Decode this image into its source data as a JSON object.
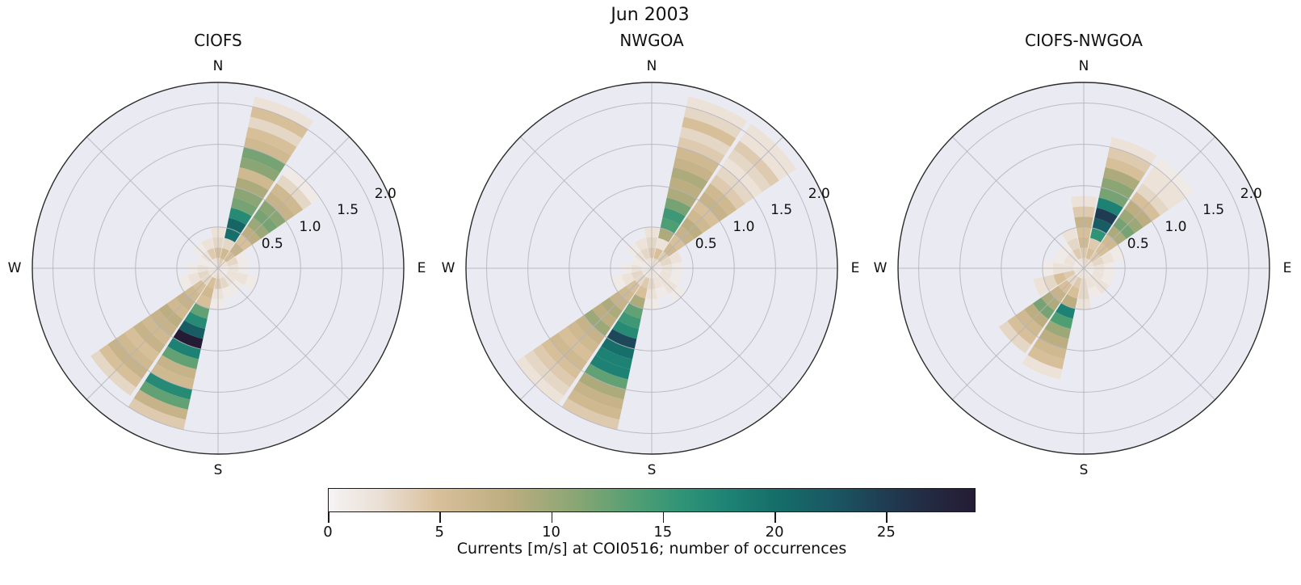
{
  "header": {
    "title": "Jun 2003"
  },
  "compass": [
    "N",
    "E",
    "S",
    "W"
  ],
  "radial_ticks": [
    "0.5",
    "1.0",
    "1.5",
    "2.0"
  ],
  "colorbar": {
    "label": "Currents [m/s] at COI0516; number of occurrences",
    "ticks": [
      0,
      5,
      10,
      15,
      20,
      25
    ],
    "vmin": 0,
    "vmax": 29,
    "colormap_stops": [
      [
        0.0,
        "#f5f3f4"
      ],
      [
        0.08,
        "#eadfd4"
      ],
      [
        0.17,
        "#d8bf9a"
      ],
      [
        0.28,
        "#bcad80"
      ],
      [
        0.38,
        "#8ba674"
      ],
      [
        0.48,
        "#4f9e74"
      ],
      [
        0.55,
        "#2f9377"
      ],
      [
        0.62,
        "#1d8274"
      ],
      [
        0.7,
        "#156c68"
      ],
      [
        0.78,
        "#1a5763"
      ],
      [
        0.86,
        "#1f3d53"
      ],
      [
        0.93,
        "#232a41"
      ],
      [
        1.0,
        "#241c35"
      ]
    ]
  },
  "style_colors": {
    "polar_background": "#eaeaf2",
    "grid": "#b3b3bd",
    "outline": "#2b2b2b"
  },
  "chart_data": [
    {
      "type": "windrose",
      "title": "CIOFS",
      "r_bin_width": 0.125,
      "r_max": 2.25,
      "r_ticks": [
        0.5,
        1.0,
        1.5,
        2.0
      ],
      "sector_width_deg": 22.5,
      "value_units": "number of occurrences",
      "radial_units": "m/s",
      "petals": [
        {
          "dir": "N",
          "deg": 0.0,
          "counts": [
            3,
            5,
            3,
            2
          ]
        },
        {
          "dir": "NNE",
          "deg": 22.5,
          "counts": [
            4,
            6,
            3,
            20,
            21,
            17,
            12,
            11,
            9,
            6,
            11,
            12,
            6,
            5,
            3,
            5,
            2
          ]
        },
        {
          "dir": "NE",
          "deg": 45.0,
          "counts": [
            2,
            5,
            7,
            5,
            8,
            10,
            12,
            11,
            7,
            6,
            3,
            1
          ]
        },
        {
          "dir": "ENE",
          "deg": 67.5,
          "counts": [
            2,
            3,
            1
          ]
        },
        {
          "dir": "E",
          "deg": 90.0,
          "counts": [
            1,
            2,
            1
          ]
        },
        {
          "dir": "ESE",
          "deg": 112.5,
          "counts": [
            1,
            2,
            2,
            1
          ]
        },
        {
          "dir": "SE",
          "deg": 135.0,
          "counts": [
            1,
            2,
            1
          ]
        },
        {
          "dir": "SSE",
          "deg": 157.5,
          "counts": [
            2,
            3,
            1
          ]
        },
        {
          "dir": "S",
          "deg": 180.0,
          "counts": [
            3,
            4,
            2,
            1
          ]
        },
        {
          "dir": "SSW",
          "deg": 202.5,
          "counts": [
            2,
            5,
            6,
            5,
            13,
            17,
            22,
            29,
            18,
            13,
            7,
            6,
            17,
            13,
            7,
            4
          ]
        },
        {
          "dir": "SW",
          "deg": 225.0,
          "counts": [
            1,
            3,
            5,
            6,
            7,
            6,
            8,
            7,
            6,
            7,
            5,
            6,
            7,
            5,
            3
          ]
        },
        {
          "dir": "WSW",
          "deg": 247.5,
          "counts": [
            2,
            3,
            2,
            1
          ]
        },
        {
          "dir": "W",
          "deg": 270.0,
          "counts": [
            1,
            2,
            1
          ]
        },
        {
          "dir": "WNW",
          "deg": 292.5,
          "counts": [
            1,
            1
          ]
        },
        {
          "dir": "NW",
          "deg": 315.0,
          "counts": [
            1,
            2,
            1
          ]
        },
        {
          "dir": "NNW",
          "deg": 337.5,
          "counts": [
            2,
            4,
            2
          ]
        }
      ]
    },
    {
      "type": "windrose",
      "title": "NWGOA",
      "r_bin_width": 0.125,
      "r_max": 2.25,
      "r_ticks": [
        0.5,
        1.0,
        1.5,
        2.0
      ],
      "sector_width_deg": 22.5,
      "value_units": "number of occurrences",
      "radial_units": "m/s",
      "petals": [
        {
          "dir": "N",
          "deg": 0.0,
          "counts": [
            2,
            4,
            3,
            2
          ]
        },
        {
          "dir": "NNE",
          "deg": 22.5,
          "counts": [
            3,
            5,
            2,
            9,
            14,
            15,
            12,
            9,
            8,
            9,
            7,
            6,
            4,
            3,
            5,
            3,
            2
          ]
        },
        {
          "dir": "NE",
          "deg": 45.0,
          "counts": [
            2,
            4,
            6,
            5,
            7,
            8,
            6,
            5,
            7,
            6,
            4,
            3,
            2,
            3,
            4,
            2,
            2
          ]
        },
        {
          "dir": "ENE",
          "deg": 67.5,
          "counts": [
            2,
            3,
            2
          ]
        },
        {
          "dir": "E",
          "deg": 90.0,
          "counts": [
            1,
            2,
            1
          ]
        },
        {
          "dir": "ESE",
          "deg": 112.5,
          "counts": [
            1,
            2,
            1
          ]
        },
        {
          "dir": "SE",
          "deg": 135.0,
          "counts": [
            1,
            2,
            2,
            1
          ]
        },
        {
          "dir": "SSE",
          "deg": 157.5,
          "counts": [
            2,
            2,
            1
          ]
        },
        {
          "dir": "S",
          "deg": 180.0,
          "counts": [
            2,
            3,
            2,
            1
          ]
        },
        {
          "dir": "SSW",
          "deg": 202.5,
          "counts": [
            2,
            4,
            5,
            9,
            13,
            15,
            17,
            24,
            20,
            18,
            18,
            13,
            9,
            7,
            6,
            4
          ]
        },
        {
          "dir": "SW",
          "deg": 225.0,
          "counts": [
            1,
            3,
            5,
            6,
            7,
            9,
            8,
            10,
            7,
            6,
            5,
            6,
            5,
            4,
            3,
            2
          ]
        },
        {
          "dir": "WSW",
          "deg": 247.5,
          "counts": [
            2,
            3,
            2,
            1
          ]
        },
        {
          "dir": "W",
          "deg": 270.0,
          "counts": [
            1,
            2,
            1
          ]
        },
        {
          "dir": "WNW",
          "deg": 292.5,
          "counts": [
            1,
            1
          ]
        },
        {
          "dir": "NW",
          "deg": 315.0,
          "counts": [
            1,
            2,
            1
          ]
        },
        {
          "dir": "NNW",
          "deg": 337.5,
          "counts": [
            2,
            3,
            2
          ]
        }
      ]
    },
    {
      "type": "windrose",
      "title": "CIOFS-NWGOA",
      "r_bin_width": 0.125,
      "r_max": 2.25,
      "r_ticks": [
        0.5,
        1.0,
        1.5,
        2.0
      ],
      "sector_width_deg": 22.5,
      "value_units": "number of occurrences",
      "radial_units": "m/s",
      "petals": [
        {
          "dir": "N",
          "deg": 0.0,
          "counts": [
            3,
            4,
            6,
            5,
            7,
            4,
            2
          ]
        },
        {
          "dir": "NNE",
          "deg": 22.5,
          "counts": [
            3,
            5,
            4,
            16,
            22,
            25,
            18,
            12,
            11,
            9,
            5,
            4,
            2
          ]
        },
        {
          "dir": "NE",
          "deg": 45.0,
          "counts": [
            2,
            4,
            5,
            6,
            9,
            12,
            10,
            8,
            5,
            3,
            2,
            2,
            1
          ]
        },
        {
          "dir": "ENE",
          "deg": 67.5,
          "counts": [
            2,
            3,
            2,
            1
          ]
        },
        {
          "dir": "E",
          "deg": 90.0,
          "counts": [
            1,
            2,
            1
          ]
        },
        {
          "dir": "ESE",
          "deg": 112.5,
          "counts": [
            1,
            2,
            1
          ]
        },
        {
          "dir": "SE",
          "deg": 135.0,
          "counts": [
            1,
            2,
            2
          ]
        },
        {
          "dir": "SSE",
          "deg": 157.5,
          "counts": [
            2,
            2,
            1
          ]
        },
        {
          "dir": "S",
          "deg": 180.0,
          "counts": [
            2,
            3,
            3,
            2
          ]
        },
        {
          "dir": "SSW",
          "deg": 202.5,
          "counts": [
            2,
            4,
            5,
            8,
            18,
            14,
            10,
            8,
            6,
            5,
            2
          ]
        },
        {
          "dir": "SW",
          "deg": 225.0,
          "counts": [
            1,
            3,
            5,
            7,
            9,
            12,
            8,
            6,
            5,
            3
          ]
        },
        {
          "dir": "WSW",
          "deg": 247.5,
          "counts": [
            2,
            4,
            5,
            3,
            2
          ]
        },
        {
          "dir": "W",
          "deg": 270.0,
          "counts": [
            1,
            2,
            2,
            1
          ]
        },
        {
          "dir": "WNW",
          "deg": 292.5,
          "counts": [
            1,
            2,
            1
          ]
        },
        {
          "dir": "NW",
          "deg": 315.0,
          "counts": [
            1,
            2,
            1
          ]
        },
        {
          "dir": "NNW",
          "deg": 337.5,
          "counts": [
            2,
            4,
            3,
            2
          ]
        }
      ]
    }
  ]
}
